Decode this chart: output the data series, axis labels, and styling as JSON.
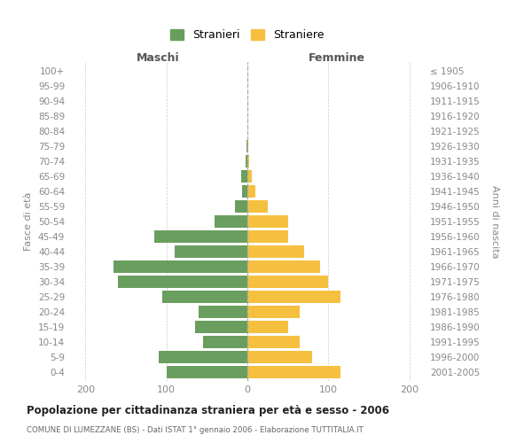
{
  "age_groups": [
    "0-4",
    "5-9",
    "10-14",
    "15-19",
    "20-24",
    "25-29",
    "30-34",
    "35-39",
    "40-44",
    "45-49",
    "50-54",
    "55-59",
    "60-64",
    "65-69",
    "70-74",
    "75-79",
    "80-84",
    "85-89",
    "90-94",
    "95-99",
    "100+"
  ],
  "birth_years": [
    "2001-2005",
    "1996-2000",
    "1991-1995",
    "1986-1990",
    "1981-1985",
    "1976-1980",
    "1971-1975",
    "1966-1970",
    "1961-1965",
    "1956-1960",
    "1951-1955",
    "1946-1950",
    "1941-1945",
    "1936-1940",
    "1931-1935",
    "1926-1930",
    "1921-1925",
    "1916-1920",
    "1911-1915",
    "1906-1910",
    "≤ 1905"
  ],
  "maschi": [
    100,
    110,
    55,
    65,
    60,
    105,
    160,
    165,
    90,
    115,
    40,
    15,
    7,
    8,
    2,
    1,
    0,
    0,
    0,
    0,
    0
  ],
  "femmine": [
    115,
    80,
    65,
    50,
    65,
    115,
    100,
    90,
    70,
    50,
    50,
    25,
    10,
    5,
    2,
    1,
    0,
    0,
    0,
    0,
    0
  ],
  "color_maschi": "#6a9e5e",
  "color_femmine": "#f5c040",
  "title": "Popolazione per cittadinanza straniera per età e sesso - 2006",
  "subtitle": "COMUNE DI LUMEZZANE (BS) - Dati ISTAT 1° gennaio 2006 - Elaborazione TUTTITALIA.IT",
  "xlabel_left": "Maschi",
  "xlabel_right": "Femmine",
  "ylabel_left": "Fasce di età",
  "ylabel_right": "Anni di nascita",
  "legend_maschi": "Stranieri",
  "legend_femmine": "Straniere",
  "xlim": 220,
  "grid_color": "#cccccc",
  "label_color": "#888888"
}
